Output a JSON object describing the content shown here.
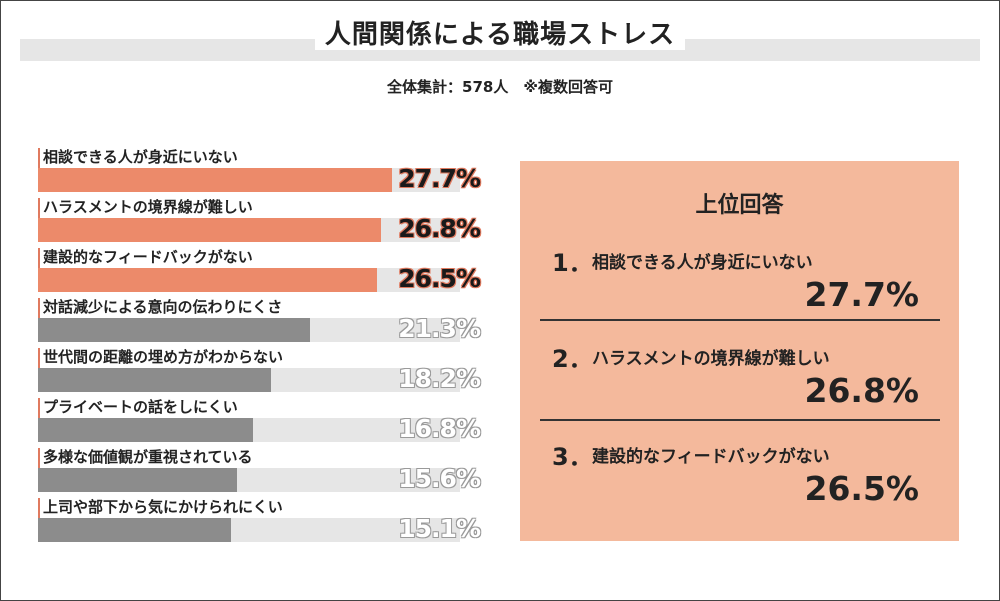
{
  "title": "人間関係による職場ストレス",
  "subtitle": "全体集計：578人　※複数回答可",
  "chart_data": {
    "type": "bar",
    "orientation": "horizontal",
    "title": "人間関係による職場ストレス",
    "subtitle": "全体集計：578人　※複数回答可",
    "categories": [
      "相談できる人が身近にいない",
      "ハラスメントの境界線が難しい",
      "建設的なフィードバックがない",
      "対話減少による意向の伝わりにくさ",
      "世代間の距離の埋め方がわからない",
      "プライベートの話をしにくい",
      "多様な価値観が重視されている",
      "上司や部下から気にかけられにくい"
    ],
    "values": [
      27.7,
      26.8,
      26.5,
      21.3,
      18.2,
      16.8,
      15.6,
      15.1
    ],
    "value_labels": [
      "27.7%",
      "26.8%",
      "26.5%",
      "21.3%",
      "18.2%",
      "16.8%",
      "15.6%",
      "15.1%"
    ],
    "unit": "%",
    "xlim": [
      0,
      33
    ],
    "highlight_count": 3,
    "colors": {
      "highlight": "#ec8a6a",
      "normal": "#8c8c8c",
      "track": "#e6e6e6",
      "panel": "#f4b99c"
    }
  },
  "top_answers": {
    "title": "上位回答",
    "items": [
      {
        "rank": "1．",
        "label": "相談できる人が身近にいない",
        "value": "27.7%"
      },
      {
        "rank": "2．",
        "label": "ハラスメントの境界線が難しい",
        "value": "26.8%"
      },
      {
        "rank": "3．",
        "label": "建設的なフィードバックがない",
        "value": "26.5%"
      }
    ]
  }
}
